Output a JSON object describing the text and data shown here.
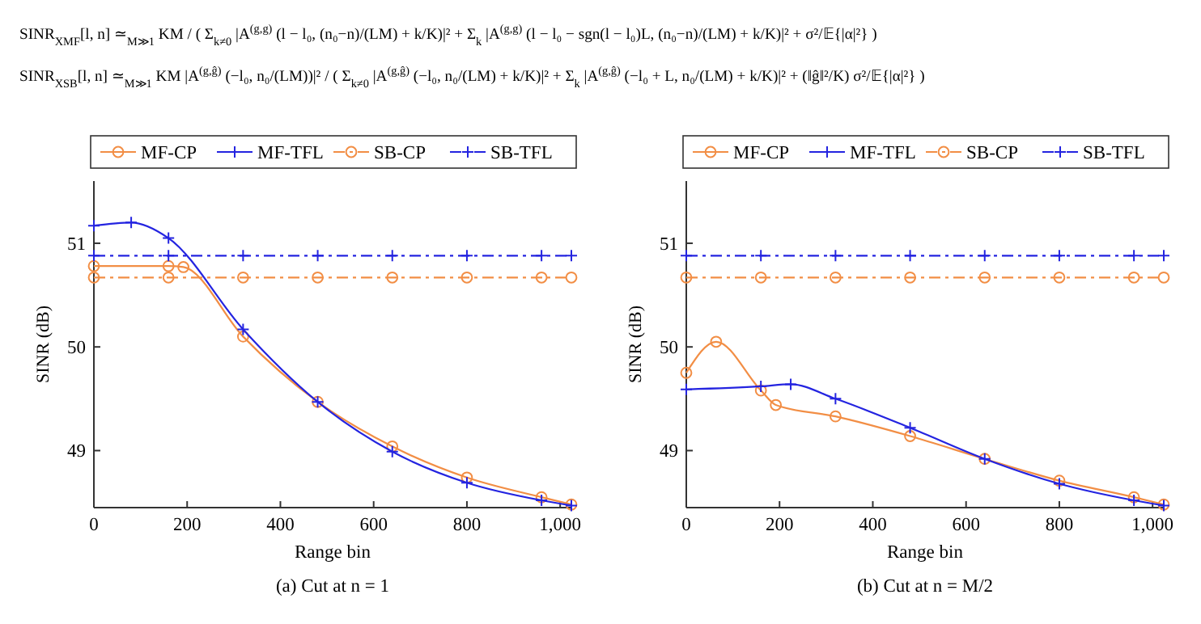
{
  "chart_data": [
    {
      "type": "line",
      "title": "(a) Cut at n = 1",
      "xlabel": "Range bin",
      "ylabel": "SINR (dB)",
      "xlim": [
        0,
        1024
      ],
      "ylim": [
        48.45,
        51.6
      ],
      "xticks": [
        0,
        200,
        400,
        600,
        800,
        {
          "value": 1000,
          "label": "1,000"
        }
      ],
      "yticks": [
        49,
        50,
        51
      ],
      "grid": false,
      "legend": "top",
      "annotations": [
        "SINR$_{XMF}$[l, n] ≃$_{M≫1}$ KM / ( Σ$_{k≠0}$ |A$^{(g,g)}$ (l − l₀, (n₀−n)/(LM) + k/K)|² + Σ$_{k}$ |A$^{(g,g)}$ (l − l₀ − sgn(l − l₀)L, (n₀−n)/(LM) + k/K)|² + σ²/𝔼{|α|²} )",
        "SINR$_{XSB}$[l, n] ≃$_{M≫1}$ KM |A$^{(g,ĝ)}$ (−l₀, n₀/(LM))|² / ( Σ$_{k≠0}$ |A$^{(g,ĝ)}$ (−l₀, n₀/(LM) + k/K)|² + Σ$_{k}$ |A$^{(g,ĝ)}$ (−l₀ + L, n₀/(LM) + k/K)|² + (‖ĝ‖²/K) σ²/𝔼{|α|²} )"
      ],
      "series": [
        {
          "name": "MF-CP",
          "color": "#f28e45",
          "marker": "circle",
          "line_style": "solid",
          "x": [
            0,
            160,
            192,
            320,
            480,
            640,
            800,
            960,
            1024
          ],
          "values": [
            50.78,
            50.78,
            50.77,
            50.1,
            49.47,
            49.04,
            48.74,
            48.55,
            48.48
          ]
        },
        {
          "name": "MF-TFL",
          "color": "#2424e0",
          "marker": "cross",
          "line_style": "solid",
          "x": [
            0,
            80,
            160,
            320,
            480,
            640,
            800,
            960,
            1024
          ],
          "values": [
            51.17,
            51.2,
            51.05,
            50.17,
            49.47,
            48.99,
            48.69,
            48.52,
            48.47
          ]
        },
        {
          "name": "SB-CP",
          "color": "#f28e45",
          "marker": "circle",
          "line_style": "dashed",
          "x": [
            0,
            160,
            320,
            480,
            640,
            800,
            960,
            1024
          ],
          "values": [
            50.67,
            50.67,
            50.67,
            50.67,
            50.67,
            50.67,
            50.67,
            50.67
          ]
        },
        {
          "name": "SB-TFL",
          "color": "#2424e0",
          "marker": "cross",
          "line_style": "dashed",
          "x": [
            0,
            160,
            320,
            480,
            640,
            800,
            960,
            1024
          ],
          "values": [
            50.88,
            50.88,
            50.88,
            50.88,
            50.88,
            50.88,
            50.88,
            50.88
          ]
        }
      ]
    },
    {
      "type": "line",
      "title": "(b) Cut at n = M/2",
      "xlabel": "Range bin",
      "ylabel": "SINR (dB)",
      "xlim": [
        0,
        1024
      ],
      "ylim": [
        48.45,
        51.6
      ],
      "xticks": [
        0,
        200,
        400,
        600,
        800,
        {
          "value": 1000,
          "label": "1,000"
        }
      ],
      "yticks": [
        49,
        50,
        51
      ],
      "grid": false,
      "legend": "top",
      "series": [
        {
          "name": "MF-CP",
          "color": "#f28e45",
          "marker": "circle",
          "line_style": "solid",
          "x": [
            0,
            64,
            160,
            192,
            320,
            480,
            640,
            800,
            960,
            1024
          ],
          "values": [
            49.75,
            50.05,
            49.58,
            49.44,
            49.33,
            49.14,
            48.92,
            48.71,
            48.55,
            48.48
          ]
        },
        {
          "name": "MF-TFL",
          "color": "#2424e0",
          "marker": "cross",
          "line_style": "solid",
          "x": [
            0,
            160,
            224,
            320,
            480,
            640,
            800,
            960,
            1024
          ],
          "values": [
            49.59,
            49.62,
            49.64,
            49.5,
            49.22,
            48.92,
            48.68,
            48.52,
            48.47
          ]
        },
        {
          "name": "SB-CP",
          "color": "#f28e45",
          "marker": "circle",
          "line_style": "dashed",
          "x": [
            0,
            160,
            320,
            480,
            640,
            800,
            960,
            1024
          ],
          "values": [
            50.67,
            50.67,
            50.67,
            50.67,
            50.67,
            50.67,
            50.67,
            50.67
          ]
        },
        {
          "name": "SB-TFL",
          "color": "#2424e0",
          "marker": "cross",
          "line_style": "dashed",
          "x": [
            0,
            160,
            320,
            480,
            640,
            800,
            960,
            1024
          ],
          "values": [
            50.88,
            50.88,
            50.88,
            50.88,
            50.88,
            50.88,
            50.88,
            50.88
          ]
        }
      ]
    }
  ]
}
